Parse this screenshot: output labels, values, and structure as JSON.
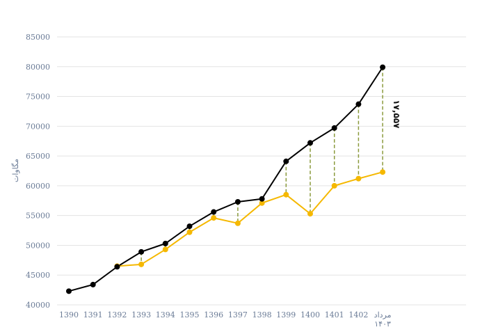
{
  "chart_data": {
    "type": "line",
    "ylabel": "مگاوات",
    "categories": [
      "1390",
      "1391",
      "1392",
      "1393",
      "1394",
      "1395",
      "1396",
      "1397",
      "1398",
      "1399",
      "1400",
      "1401",
      "1402",
      "مرداد ۱۴۰۳"
    ],
    "ylim": [
      40000,
      85000
    ],
    "yticks": [
      "40000",
      "45000",
      "50000",
      "55000",
      "60000",
      "65000",
      "70000",
      "75000",
      "80000",
      "85000"
    ],
    "series": [
      {
        "color": "#000000",
        "values": [
          42300,
          43400,
          46400,
          48900,
          50300,
          53200,
          55600,
          57300,
          57800,
          64100,
          67200,
          69700,
          73700,
          79900
        ]
      },
      {
        "color": "#f5b800",
        "values": [
          null,
          null,
          46500,
          46800,
          49300,
          52200,
          54600,
          53700,
          57100,
          58500,
          55300,
          60000,
          61200,
          62300
        ]
      }
    ],
    "gap_lines": {
      "color": "#8a9a3c",
      "style": "dashed"
    },
    "annotation": {
      "text": "۱۷,۵۵۷",
      "category_index": 13
    },
    "grid": true,
    "legend": "none"
  }
}
